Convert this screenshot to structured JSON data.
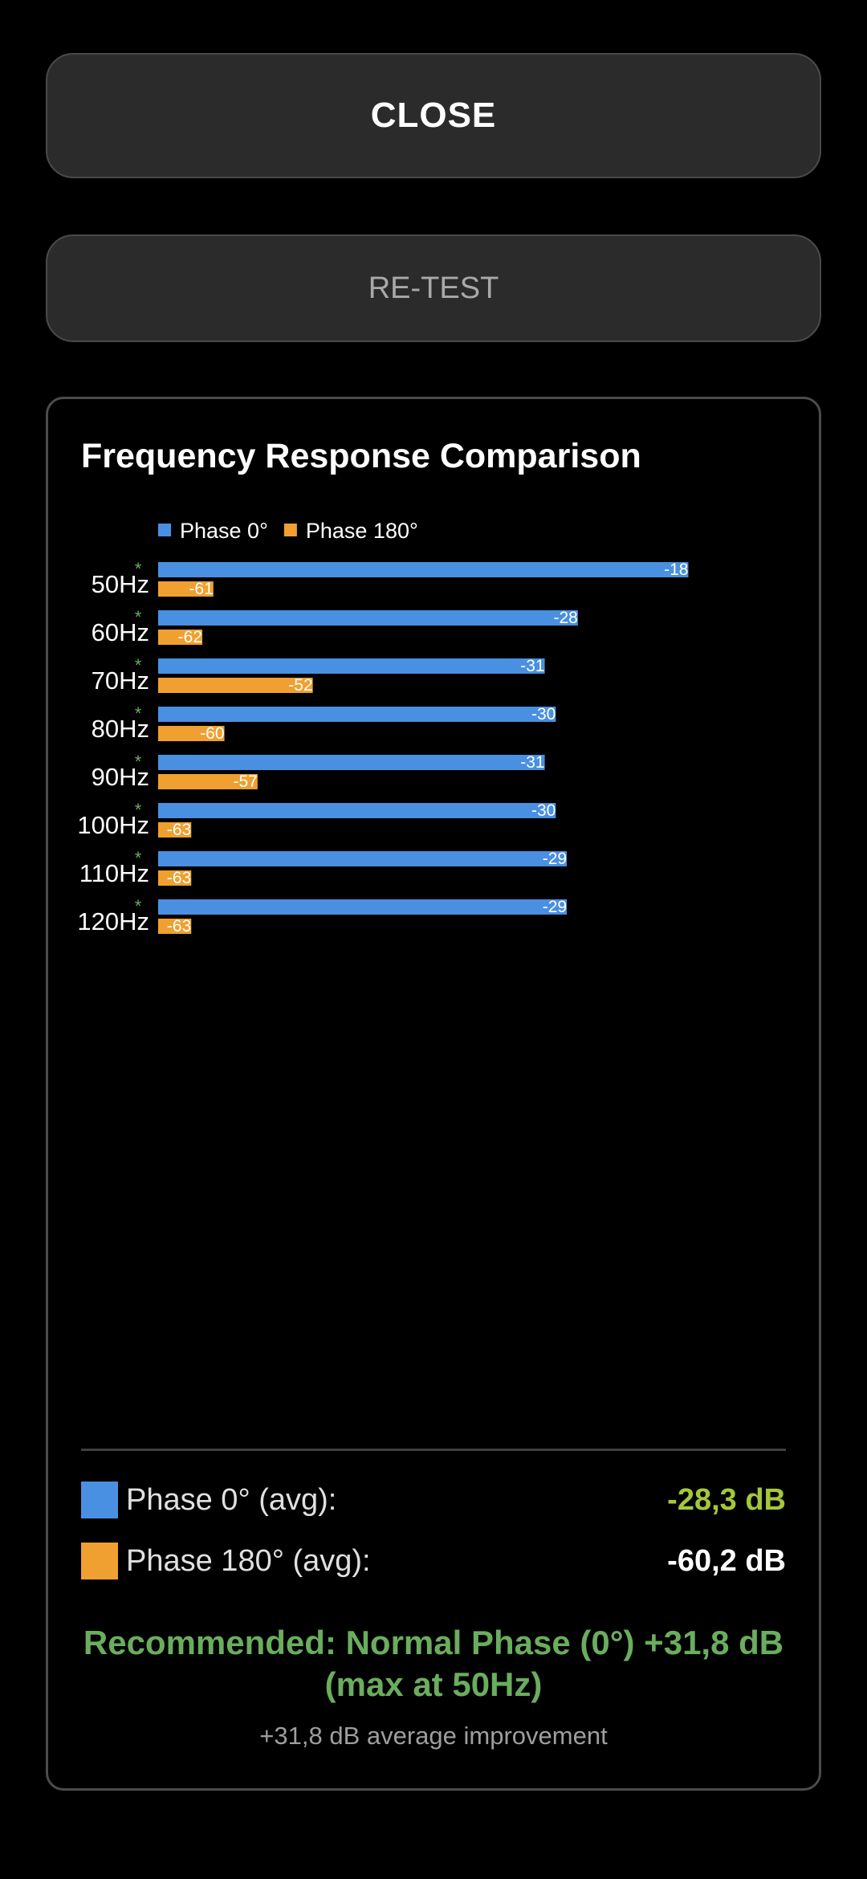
{
  "buttons": {
    "close_label": "CLOSE",
    "retest_label": "RE-TEST"
  },
  "colors": {
    "phase0": "#4a90e2",
    "phase180": "#f0a030",
    "positive": "#a4c83a",
    "recommend": "#6aad5e",
    "marker": "#6aad5e"
  },
  "chart_data": {
    "type": "bar",
    "orientation": "horizontal",
    "title": "Frequency Response Comparison",
    "categories": [
      "50Hz",
      "60Hz",
      "70Hz",
      "80Hz",
      "90Hz",
      "100Hz",
      "110Hz",
      "120Hz"
    ],
    "category_marker": "*",
    "series": [
      {
        "name": "Phase 0°",
        "values": [
          -18,
          -28,
          -31,
          -30,
          -31,
          -30,
          -29,
          -29
        ]
      },
      {
        "name": "Phase 180°",
        "values": [
          -61,
          -62,
          -52,
          -60,
          -57,
          -63,
          -63,
          -63
        ]
      }
    ],
    "xlim": [
      -66,
      -12
    ],
    "legend": "top-left",
    "grid": false
  },
  "summary": {
    "phase0_label": "Phase 0° (avg):",
    "phase0_value": "-28,3 dB",
    "phase180_label": "Phase 180° (avg):",
    "phase180_value": "-60,2 dB",
    "recommendation": "Recommended: Normal Phase (0°) +31,8 dB (max at 50Hz)",
    "improvement": "+31,8 dB average improvement"
  }
}
